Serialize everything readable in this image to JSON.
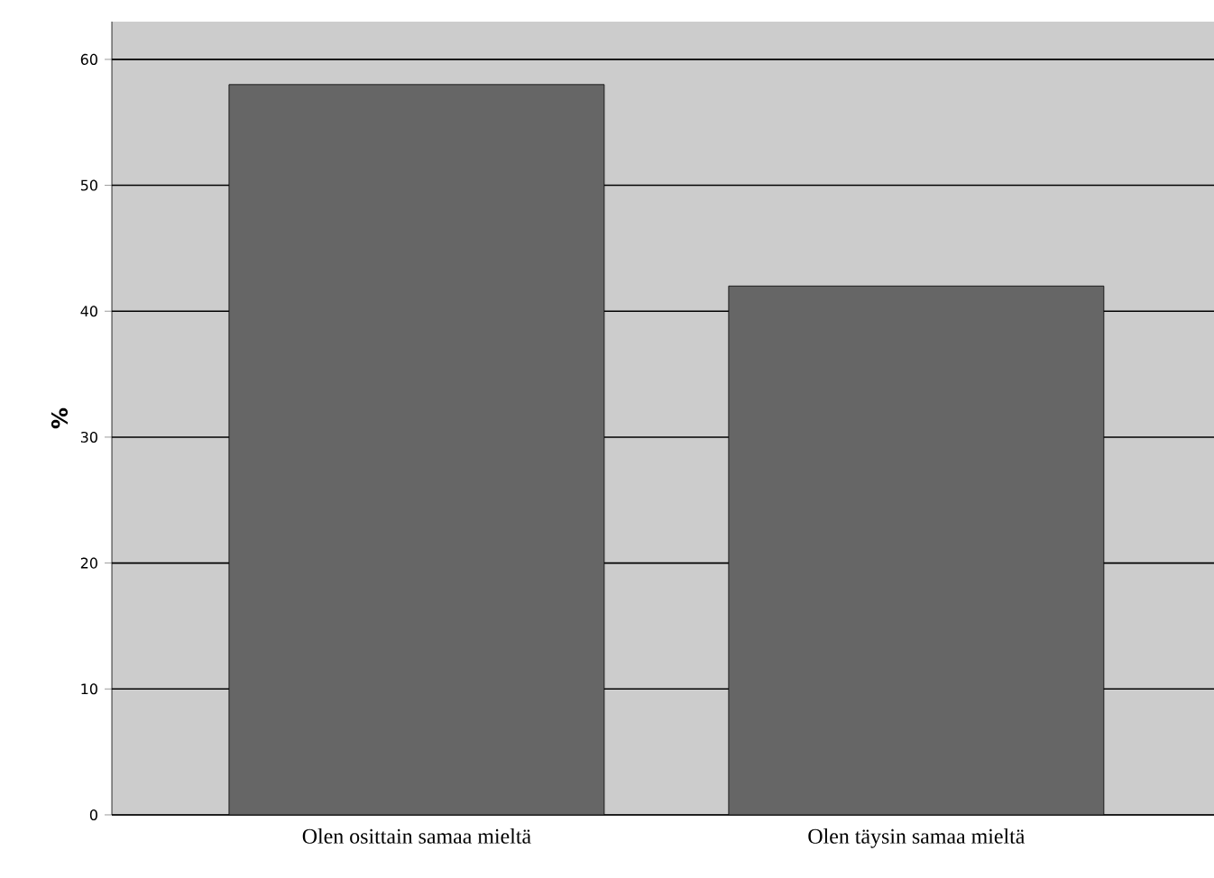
{
  "chart_data": {
    "type": "bar",
    "ylabel": "%",
    "categories": [
      "Olen osittain samaa mieltä",
      "Olen täysin samaa mieltä"
    ],
    "values": [
      58,
      42
    ],
    "color": "#666666",
    "ylim": [
      0,
      63
    ],
    "yticks": [
      0,
      10,
      20,
      30,
      40,
      50,
      60
    ],
    "grid": "y"
  }
}
